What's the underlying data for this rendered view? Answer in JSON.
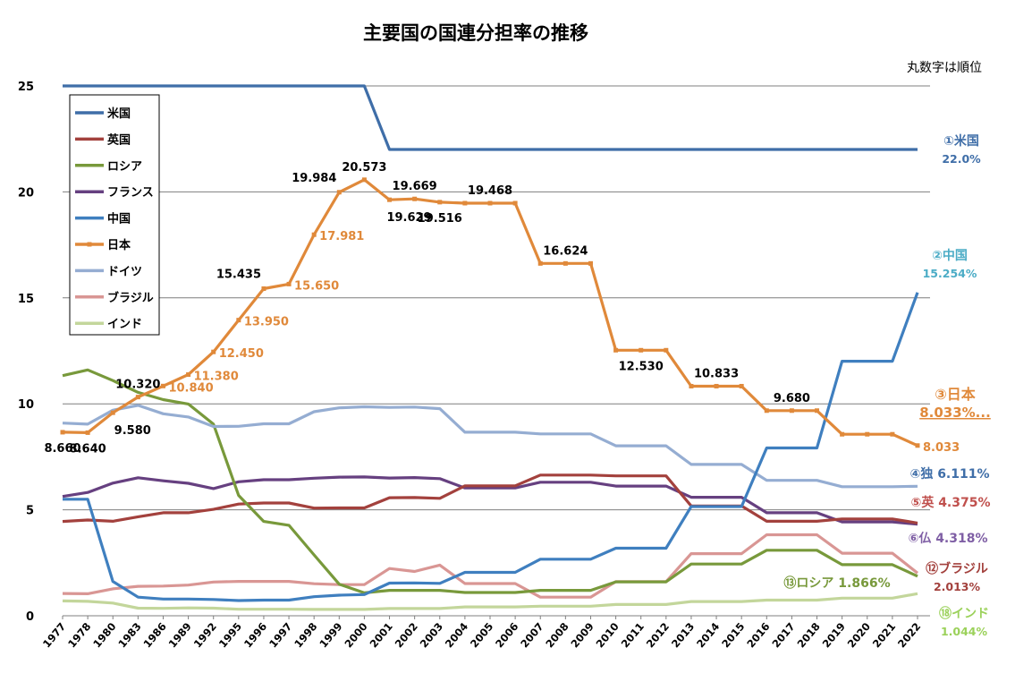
{
  "chart_data": {
    "type": "line",
    "title": "主要国の国連分担率の推移",
    "note": "丸数字は順位",
    "xlabel": "",
    "ylabel": "",
    "ylim": [
      0,
      25
    ],
    "yticks": [
      0,
      5,
      10,
      15,
      20,
      25
    ],
    "categories": [
      "1977",
      "1978",
      "1980",
      "1983",
      "1986",
      "1989",
      "1992",
      "1995",
      "1996",
      "1997",
      "1998",
      "1999",
      "2000",
      "2001",
      "2002",
      "2003",
      "2004",
      "2005",
      "2006",
      "2007",
      "2008",
      "2009",
      "2010",
      "2011",
      "2012",
      "2013",
      "2014",
      "2015",
      "2016",
      "2017",
      "2018",
      "2019",
      "2020",
      "2021",
      "2022"
    ],
    "legend": {
      "position": "top-left"
    },
    "series": [
      {
        "key": "us",
        "name": "米国",
        "color": "#3f6ea8",
        "values": [
          25,
          25,
          25,
          25,
          25,
          25,
          25,
          25,
          25,
          25,
          25,
          25,
          25,
          22,
          22,
          22,
          22,
          22,
          22,
          22,
          22,
          22,
          22,
          22,
          22,
          22,
          22,
          22,
          22,
          22,
          22,
          22,
          22,
          22,
          22
        ]
      },
      {
        "key": "uk",
        "name": "英国",
        "color": "#a3413d",
        "values": [
          4.45,
          4.52,
          4.46,
          4.67,
          4.86,
          4.86,
          5.02,
          5.27,
          5.32,
          5.32,
          5.08,
          5.09,
          5.09,
          5.57,
          5.58,
          5.54,
          6.13,
          6.13,
          6.13,
          6.64,
          6.64,
          6.64,
          6.6,
          6.6,
          6.6,
          5.18,
          5.18,
          5.18,
          4.46,
          4.46,
          4.46,
          4.57,
          4.57,
          4.57,
          4.375
        ]
      },
      {
        "key": "ru",
        "name": "ロシア",
        "color": "#78993b",
        "values": [
          11.33,
          11.6,
          11.1,
          10.54,
          10.2,
          9.99,
          9.04,
          5.68,
          4.45,
          4.27,
          2.87,
          1.49,
          1.08,
          1.2,
          1.2,
          1.2,
          1.1,
          1.1,
          1.1,
          1.2,
          1.2,
          1.2,
          1.6,
          1.6,
          1.6,
          2.44,
          2.44,
          2.44,
          3.09,
          3.09,
          3.09,
          2.41,
          2.41,
          2.41,
          1.866
        ]
      },
      {
        "key": "fr",
        "name": "フランス",
        "color": "#664080",
        "values": [
          5.63,
          5.82,
          6.26,
          6.51,
          6.37,
          6.25,
          6.0,
          6.32,
          6.42,
          6.42,
          6.49,
          6.54,
          6.55,
          6.5,
          6.52,
          6.47,
          6.03,
          6.03,
          6.03,
          6.3,
          6.3,
          6.3,
          6.12,
          6.12,
          6.12,
          5.59,
          5.59,
          5.59,
          4.86,
          4.86,
          4.86,
          4.43,
          4.43,
          4.43,
          4.318
        ]
      },
      {
        "key": "cn",
        "name": "中国",
        "color": "#3f7fbf",
        "values": [
          5.5,
          5.5,
          1.62,
          0.88,
          0.79,
          0.79,
          0.77,
          0.72,
          0.74,
          0.74,
          0.9,
          0.97,
          1.0,
          1.54,
          1.55,
          1.53,
          2.05,
          2.05,
          2.05,
          2.67,
          2.67,
          2.67,
          3.19,
          3.19,
          3.19,
          5.15,
          5.15,
          5.15,
          7.92,
          7.92,
          7.92,
          12.01,
          12.01,
          12.01,
          15.254
        ]
      },
      {
        "key": "jp",
        "name": "日本",
        "color": "#e0893a",
        "values": [
          8.66,
          8.64,
          9.58,
          10.32,
          10.84,
          11.38,
          12.45,
          13.95,
          15.435,
          15.65,
          17.981,
          19.984,
          20.573,
          19.629,
          19.669,
          19.516,
          19.468,
          19.468,
          19.468,
          16.624,
          16.624,
          16.624,
          12.53,
          12.53,
          12.53,
          10.833,
          10.833,
          10.833,
          9.68,
          9.68,
          9.68,
          8.564,
          8.564,
          8.564,
          8.033
        ]
      },
      {
        "key": "de",
        "name": "ドイツ",
        "color": "#95add2",
        "values": [
          9.09,
          9.04,
          9.7,
          9.93,
          9.53,
          9.38,
          8.93,
          8.94,
          9.06,
          9.06,
          9.63,
          9.81,
          9.86,
          9.83,
          9.85,
          9.77,
          8.66,
          8.66,
          8.66,
          8.58,
          8.58,
          8.58,
          8.02,
          8.02,
          8.02,
          7.14,
          7.14,
          7.14,
          6.39,
          6.39,
          6.39,
          6.09,
          6.09,
          6.09,
          6.111
        ]
      },
      {
        "key": "br",
        "name": "ブラジル",
        "color": "#d99694",
        "values": [
          1.05,
          1.04,
          1.27,
          1.39,
          1.4,
          1.45,
          1.59,
          1.62,
          1.62,
          1.62,
          1.51,
          1.47,
          1.47,
          2.23,
          2.09,
          2.39,
          1.52,
          1.52,
          1.52,
          0.88,
          0.88,
          0.88,
          1.61,
          1.61,
          1.61,
          2.93,
          2.93,
          2.93,
          3.82,
          3.82,
          3.82,
          2.95,
          2.95,
          2.95,
          2.013
        ]
      },
      {
        "key": "in",
        "name": "インド",
        "color": "#c3d69b",
        "values": [
          0.7,
          0.68,
          0.6,
          0.36,
          0.35,
          0.37,
          0.36,
          0.31,
          0.31,
          0.31,
          0.3,
          0.3,
          0.3,
          0.34,
          0.34,
          0.34,
          0.42,
          0.42,
          0.42,
          0.45,
          0.45,
          0.45,
          0.53,
          0.53,
          0.53,
          0.67,
          0.67,
          0.67,
          0.74,
          0.74,
          0.74,
          0.83,
          0.83,
          0.83,
          1.044
        ]
      }
    ],
    "data_labels": [
      {
        "series": "jp",
        "i": 0,
        "text": "8.660",
        "color": "#000000",
        "pos": "below"
      },
      {
        "series": "jp",
        "i": 1,
        "text": "8.640",
        "color": "#000000",
        "pos": "below"
      },
      {
        "series": "jp",
        "i": 2,
        "text": "9.580",
        "color": "#000000",
        "pos": "below-right"
      },
      {
        "series": "jp",
        "i": 3,
        "text": "10.320",
        "color": "#000000",
        "pos": "above"
      },
      {
        "series": "jp",
        "i": 4,
        "text": "10.840",
        "color": "#e0893a",
        "pos": "right"
      },
      {
        "series": "jp",
        "i": 5,
        "text": "11.380",
        "color": "#e0893a",
        "pos": "right"
      },
      {
        "series": "jp",
        "i": 6,
        "text": "12.450",
        "color": "#e0893a",
        "pos": "right"
      },
      {
        "series": "jp",
        "i": 7,
        "text": "13.950",
        "color": "#e0893a",
        "pos": "right"
      },
      {
        "series": "jp",
        "i": 8,
        "text": "15.435",
        "color": "#000000",
        "pos": "above-left"
      },
      {
        "series": "jp",
        "i": 9,
        "text": "15.650",
        "color": "#e0893a",
        "pos": "right"
      },
      {
        "series": "jp",
        "i": 10,
        "text": "17.981",
        "color": "#e0893a",
        "pos": "right"
      },
      {
        "series": "jp",
        "i": 11,
        "text": "19.984",
        "color": "#000000",
        "pos": "above-left"
      },
      {
        "series": "jp",
        "i": 12,
        "text": "20.573",
        "color": "#000000",
        "pos": "above"
      },
      {
        "series": "jp",
        "i": 13,
        "text": "19.629",
        "color": "#000000",
        "pos": "below-right"
      },
      {
        "series": "jp",
        "i": 14,
        "text": "19.669",
        "color": "#000000",
        "pos": "above"
      },
      {
        "series": "jp",
        "i": 15,
        "text": "19.516",
        "color": "#000000",
        "pos": "below"
      },
      {
        "series": "jp",
        "i": 17,
        "text": "19.468",
        "color": "#000000",
        "pos": "above"
      },
      {
        "series": "jp",
        "i": 20,
        "text": "16.624",
        "color": "#000000",
        "pos": "above"
      },
      {
        "series": "jp",
        "i": 23,
        "text": "12.530",
        "color": "#000000",
        "pos": "below"
      },
      {
        "series": "jp",
        "i": 26,
        "text": "10.833",
        "color": "#000000",
        "pos": "above"
      },
      {
        "series": "jp",
        "i": 29,
        "text": "9.680",
        "color": "#000000",
        "pos": "above"
      },
      {
        "series": "jp",
        "i": 34,
        "text": "8.033",
        "color": "#e0893a",
        "pos": "right"
      }
    ],
    "end_labels": [
      {
        "series": "us",
        "line1": "①米国",
        "line2": "22.0%",
        "color": "#3f6ea8",
        "value": 22.0
      },
      {
        "series": "cn",
        "line1": "②中国",
        "line2": "15.254%",
        "color": "#4bacc6",
        "value": 15.254
      },
      {
        "series": "jp",
        "line1": "③日本",
        "line2": "8.033%...",
        "color": "#e0893a",
        "value": 8.033
      },
      {
        "series": "de",
        "line1": "④独 6.111%",
        "line2": "",
        "color": "#3f6ea8",
        "value": 6.111
      },
      {
        "series": "uk",
        "line1": "⑤英 4.375%",
        "line2": "",
        "color": "#c0504d",
        "value": 4.375
      },
      {
        "series": "fr",
        "line1": "⑥仏 4.318%",
        "line2": "",
        "color": "#7f5fa5",
        "value": 4.318
      },
      {
        "series": "br",
        "line1": "⑫ブラジル",
        "line2": "2.013%",
        "color": "#a3413d",
        "value": 2.013
      },
      {
        "series": "ru",
        "line1": "⑬ロシア 1.866%",
        "line2": "",
        "color": "#78993b",
        "value": 1.866
      },
      {
        "series": "in",
        "line1": "⑱インド",
        "line2": "1.044%",
        "color": "#9bd15a",
        "value": 1.044
      }
    ]
  }
}
